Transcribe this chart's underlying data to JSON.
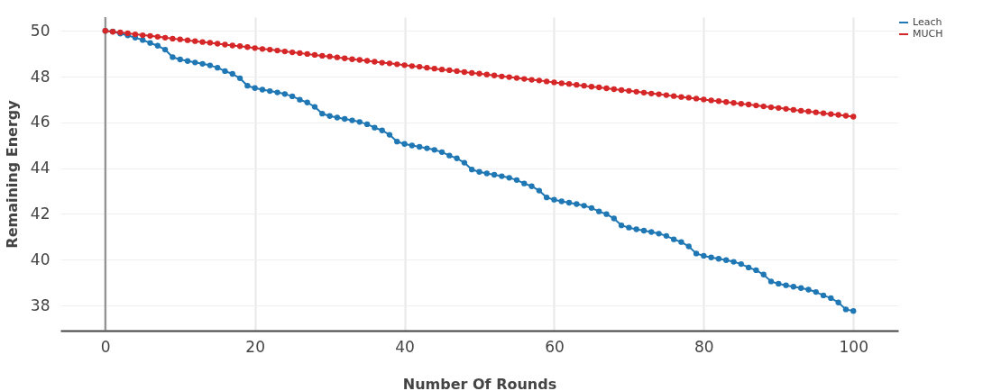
{
  "chart_data": {
    "type": "line",
    "xlabel": "Number Of Rounds",
    "ylabel": "Remaining Energy",
    "x": [
      0,
      1,
      2,
      3,
      4,
      5,
      6,
      7,
      8,
      9,
      10,
      11,
      12,
      13,
      14,
      15,
      16,
      17,
      18,
      19,
      20,
      21,
      22,
      23,
      24,
      25,
      26,
      27,
      28,
      29,
      30,
      31,
      32,
      33,
      34,
      35,
      36,
      37,
      38,
      39,
      40,
      41,
      42,
      43,
      44,
      45,
      46,
      47,
      48,
      49,
      50,
      51,
      52,
      53,
      54,
      55,
      56,
      57,
      58,
      59,
      60,
      61,
      62,
      63,
      64,
      65,
      66,
      67,
      68,
      69,
      70,
      71,
      72,
      73,
      74,
      75,
      76,
      77,
      78,
      79,
      80,
      81,
      82,
      83,
      84,
      85,
      86,
      87,
      88,
      89,
      90,
      91,
      92,
      93,
      94,
      95,
      96,
      97,
      98,
      99,
      100
    ],
    "series": [
      {
        "name": "Leach",
        "color": "#1f77b4",
        "values": [
          50,
          49.97,
          49.88,
          49.8,
          49.7,
          49.6,
          49.47,
          49.35,
          49.18,
          48.85,
          48.75,
          48.68,
          48.62,
          48.56,
          48.49,
          48.39,
          48.24,
          48.12,
          47.93,
          47.6,
          47.5,
          47.43,
          47.37,
          47.31,
          47.24,
          47.14,
          46.99,
          46.87,
          46.68,
          46.38,
          46.28,
          46.21,
          46.15,
          46.09,
          46.02,
          45.92,
          45.77,
          45.65,
          45.46,
          45.16,
          45.06,
          44.99,
          44.93,
          44.87,
          44.8,
          44.7,
          44.55,
          44.43,
          44.24,
          43.94,
          43.84,
          43.77,
          43.71,
          43.65,
          43.58,
          43.48,
          43.33,
          43.21,
          43.02,
          42.72,
          42.62,
          42.55,
          42.49,
          42.43,
          42.36,
          42.26,
          42.11,
          41.99,
          41.8,
          41.5,
          41.4,
          41.33,
          41.27,
          41.21,
          41.14,
          41.04,
          40.89,
          40.77,
          40.58,
          40.27,
          40.17,
          40.1,
          40.04,
          39.98,
          39.91,
          39.81,
          39.66,
          39.54,
          39.35,
          39.05,
          38.95,
          38.88,
          38.82,
          38.76,
          38.69,
          38.59,
          38.44,
          38.32,
          38.13,
          37.83,
          37.76
        ]
      },
      {
        "name": "MUCH",
        "color": "#d62728",
        "values": [
          50,
          49.96,
          49.93,
          49.89,
          49.85,
          49.81,
          49.78,
          49.74,
          49.7,
          49.66,
          49.63,
          49.59,
          49.55,
          49.51,
          49.48,
          49.44,
          49.4,
          49.36,
          49.33,
          49.29,
          49.25,
          49.21,
          49.18,
          49.14,
          49.1,
          49.06,
          49.03,
          48.99,
          48.95,
          48.91,
          48.88,
          48.84,
          48.8,
          48.76,
          48.73,
          48.69,
          48.65,
          48.61,
          48.58,
          48.54,
          48.5,
          48.46,
          48.43,
          48.39,
          48.35,
          48.31,
          48.28,
          48.24,
          48.2,
          48.16,
          48.13,
          48.09,
          48.05,
          48.01,
          47.98,
          47.94,
          47.9,
          47.86,
          47.83,
          47.79,
          47.75,
          47.71,
          47.68,
          47.64,
          47.6,
          47.56,
          47.53,
          47.49,
          47.45,
          47.41,
          47.38,
          47.34,
          47.3,
          47.26,
          47.23,
          47.19,
          47.15,
          47.11,
          47.08,
          47.04,
          47,
          46.96,
          46.93,
          46.89,
          46.85,
          46.81,
          46.78,
          46.74,
          46.7,
          46.66,
          46.63,
          46.59,
          46.55,
          46.51,
          46.48,
          46.44,
          46.4,
          46.36,
          46.33,
          46.29,
          46.25
        ]
      }
    ],
    "xlim": [
      -6,
      106
    ],
    "ylim": [
      36.9,
      50.6
    ],
    "xticks": [
      0,
      20,
      40,
      60,
      80,
      100
    ],
    "yticks": [
      38,
      40,
      42,
      44,
      46,
      48,
      50
    ],
    "ref_lines": [
      {
        "axis": "x",
        "value": 0,
        "color": "#888888"
      }
    ],
    "grid": true,
    "legend": "top right",
    "marker": "circle"
  }
}
